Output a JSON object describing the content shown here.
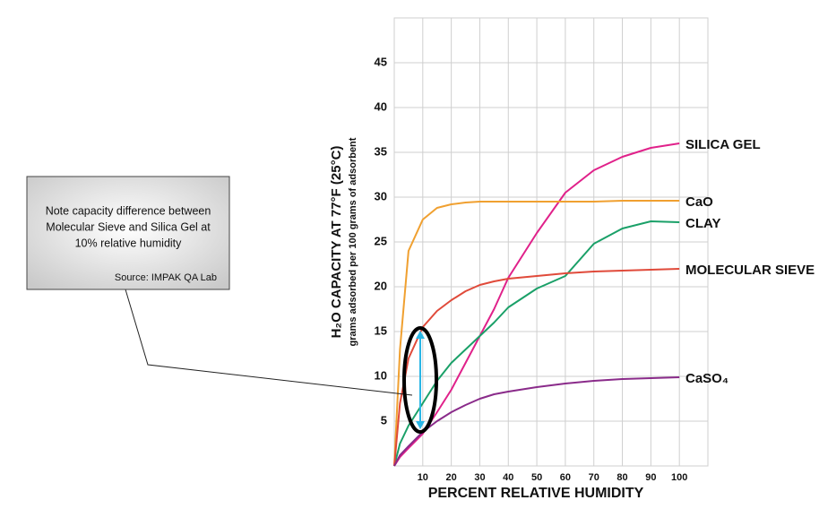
{
  "chart_data": {
    "type": "line",
    "y_label": "H₂O CAPACITY AT 77°F (25°C)",
    "y_sublabel": "grams adsorbed per 100 grams of adsorbent",
    "x_label": "PERCENT RELATIVE HUMIDITY",
    "note": [
      "Note capacity difference between",
      "Molecular Sieve and Silica Gel at",
      "10% relative humidity"
    ],
    "source": "Source: IMPAK QA Lab",
    "x": [
      0,
      2,
      5,
      10,
      15,
      20,
      25,
      30,
      35,
      40,
      50,
      60,
      70,
      80,
      90,
      100
    ],
    "series": [
      {
        "name": "SILICA GEL",
        "color": "#e0218a",
        "values": [
          0,
          1,
          2,
          3.6,
          6,
          8.5,
          11.5,
          14.5,
          17.5,
          21,
          26,
          30.5,
          33,
          34.5,
          35.5,
          36
        ]
      },
      {
        "name": "CaO",
        "color": "#f0a030",
        "values": [
          0,
          13,
          24,
          27.5,
          28.8,
          29.2,
          29.4,
          29.5,
          29.5,
          29.5,
          29.5,
          29.5,
          29.5,
          29.6,
          29.6,
          29.6
        ]
      },
      {
        "name": "CLAY",
        "color": "#1aa068",
        "values": [
          0,
          2.5,
          4.5,
          7,
          9.5,
          11.5,
          13,
          14.5,
          16,
          17.7,
          19.8,
          21.2,
          24.8,
          26.5,
          27.3,
          27.2
        ]
      },
      {
        "name": "MOLECULAR SIEVE",
        "color": "#e04a3a",
        "values": [
          0,
          7,
          12,
          15.5,
          17.3,
          18.5,
          19.5,
          20.2,
          20.6,
          20.9,
          21.2,
          21.5,
          21.7,
          21.8,
          21.9,
          22
        ]
      },
      {
        "name": "CaSO₄",
        "color": "#8a2b8a",
        "values": [
          0,
          1.2,
          2.2,
          3.8,
          5,
          6,
          6.8,
          7.5,
          8,
          8.3,
          8.8,
          9.2,
          9.5,
          9.7,
          9.8,
          9.9
        ]
      }
    ],
    "xlim": [
      0,
      110
    ],
    "ylim": [
      0,
      50
    ],
    "xticks": [
      10,
      20,
      30,
      40,
      50,
      60,
      70,
      80,
      90,
      100
    ],
    "yticks": [
      5,
      10,
      15,
      20,
      25,
      30,
      35,
      40,
      45
    ],
    "grid": true
  }
}
